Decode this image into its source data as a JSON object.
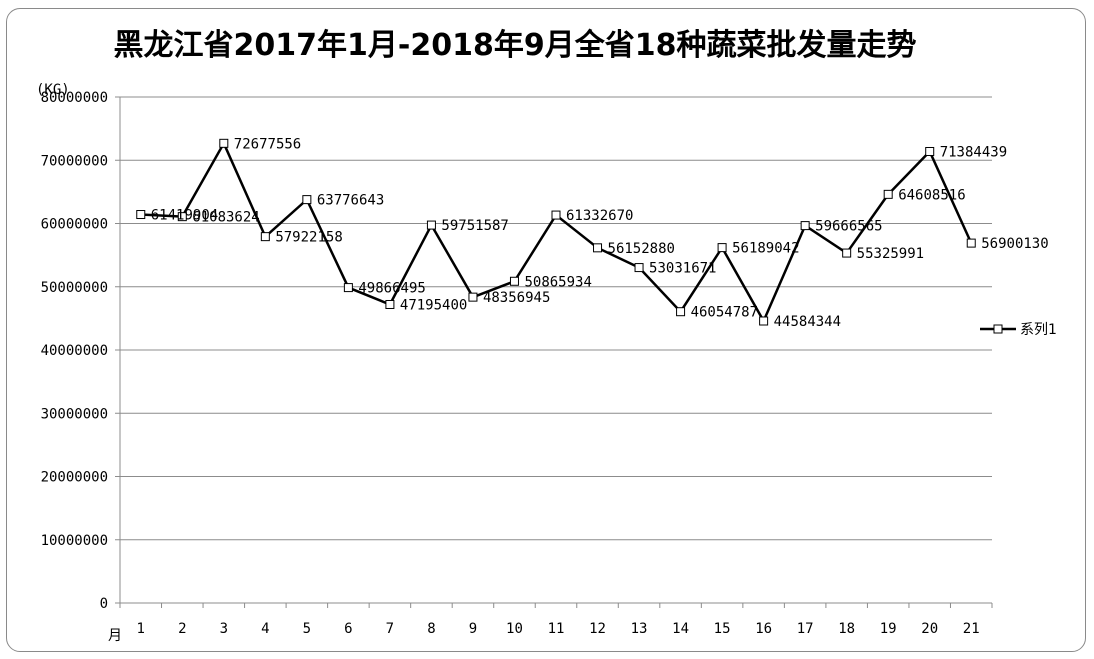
{
  "chart_data": {
    "type": "line",
    "title": "黑龙江省2017年1月-2018年9月全省18种蔬菜批发量走势",
    "ylabel": "(KG)",
    "xlabel": "月",
    "ylim": [
      0,
      80000000
    ],
    "yticks": [
      0,
      10000000,
      20000000,
      30000000,
      40000000,
      50000000,
      60000000,
      70000000,
      80000000
    ],
    "categories": [
      "1",
      "2",
      "3",
      "4",
      "5",
      "6",
      "7",
      "8",
      "9",
      "10",
      "11",
      "12",
      "13",
      "14",
      "15",
      "16",
      "17",
      "18",
      "19",
      "20",
      "21"
    ],
    "series": [
      {
        "name": "系列1",
        "color": "#000000",
        "marker": "hollow-square",
        "values": [
          61419904,
          61083624,
          72677556,
          57922158,
          63776643,
          49866495,
          47195400,
          59751587,
          48356945,
          50865934,
          61332670,
          56152880,
          53031671,
          46054787,
          56189042,
          44584344,
          59666565,
          55325991,
          64608516,
          71384439,
          56900130
        ]
      }
    ],
    "grid": true,
    "legend": "right"
  }
}
